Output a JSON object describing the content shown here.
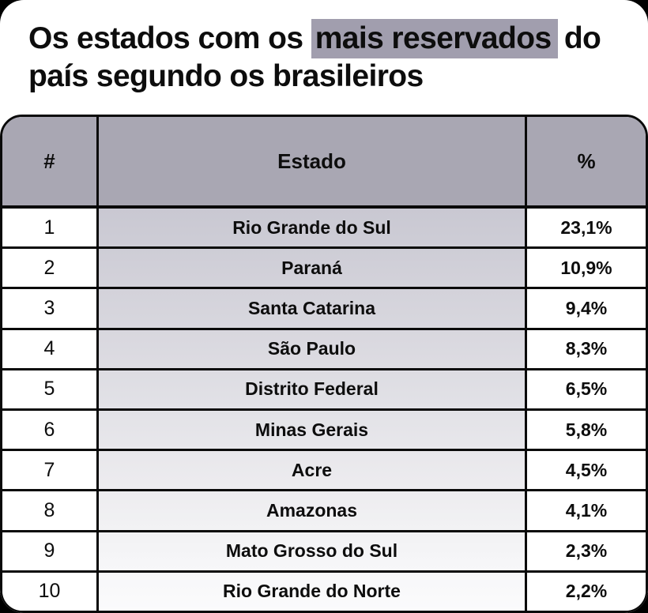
{
  "title": {
    "prefix": "Os estados com os",
    "highlight": "mais reservados",
    "line1_suffix": "do",
    "line2": "país segundo os brasileiros"
  },
  "colors": {
    "canvas_bg": "#000000",
    "card_bg": "#ffffff",
    "title_text": "#0d0d0d",
    "highlight_bg": "#a19eae",
    "header_bg": "#a9a7b3",
    "border": "#0a0a0a",
    "state_column_gradient_top": "#c9c8d2",
    "state_column_gradient_bottom": "#f7f7f9"
  },
  "table": {
    "columns": {
      "rank": "#",
      "state": "Estado",
      "percent": "%"
    },
    "rows": [
      {
        "rank": "1",
        "state": "Rio Grande do Sul",
        "percent": "23,1%"
      },
      {
        "rank": "2",
        "state": "Paraná",
        "percent": "10,9%"
      },
      {
        "rank": "3",
        "state": "Santa Catarina",
        "percent": "9,4%"
      },
      {
        "rank": "4",
        "state": "São Paulo",
        "percent": "8,3%"
      },
      {
        "rank": "5",
        "state": "Distrito Federal",
        "percent": "6,5%"
      },
      {
        "rank": "6",
        "state": "Minas Gerais",
        "percent": "5,8%"
      },
      {
        "rank": "7",
        "state": "Acre",
        "percent": "4,5%"
      },
      {
        "rank": "8",
        "state": "Amazonas",
        "percent": "4,1%"
      },
      {
        "rank": "9",
        "state": "Mato Grosso do Sul",
        "percent": "2,3%"
      },
      {
        "rank": "10",
        "state": "Rio Grande do Norte",
        "percent": "2,2%"
      }
    ]
  },
  "chart_data": {
    "type": "table",
    "title": "Os estados com os mais reservados do país segundo os brasileiros",
    "columns": [
      "#",
      "Estado",
      "%"
    ],
    "categories": [
      "Rio Grande do Sul",
      "Paraná",
      "Santa Catarina",
      "São Paulo",
      "Distrito Federal",
      "Minas Gerais",
      "Acre",
      "Amazonas",
      "Mato Grosso do Sul",
      "Rio Grande do Norte"
    ],
    "values": [
      23.1,
      10.9,
      9.4,
      8.3,
      6.5,
      5.8,
      4.5,
      4.1,
      2.3,
      2.2
    ],
    "value_unit": "percent",
    "decimal_separator": ","
  }
}
